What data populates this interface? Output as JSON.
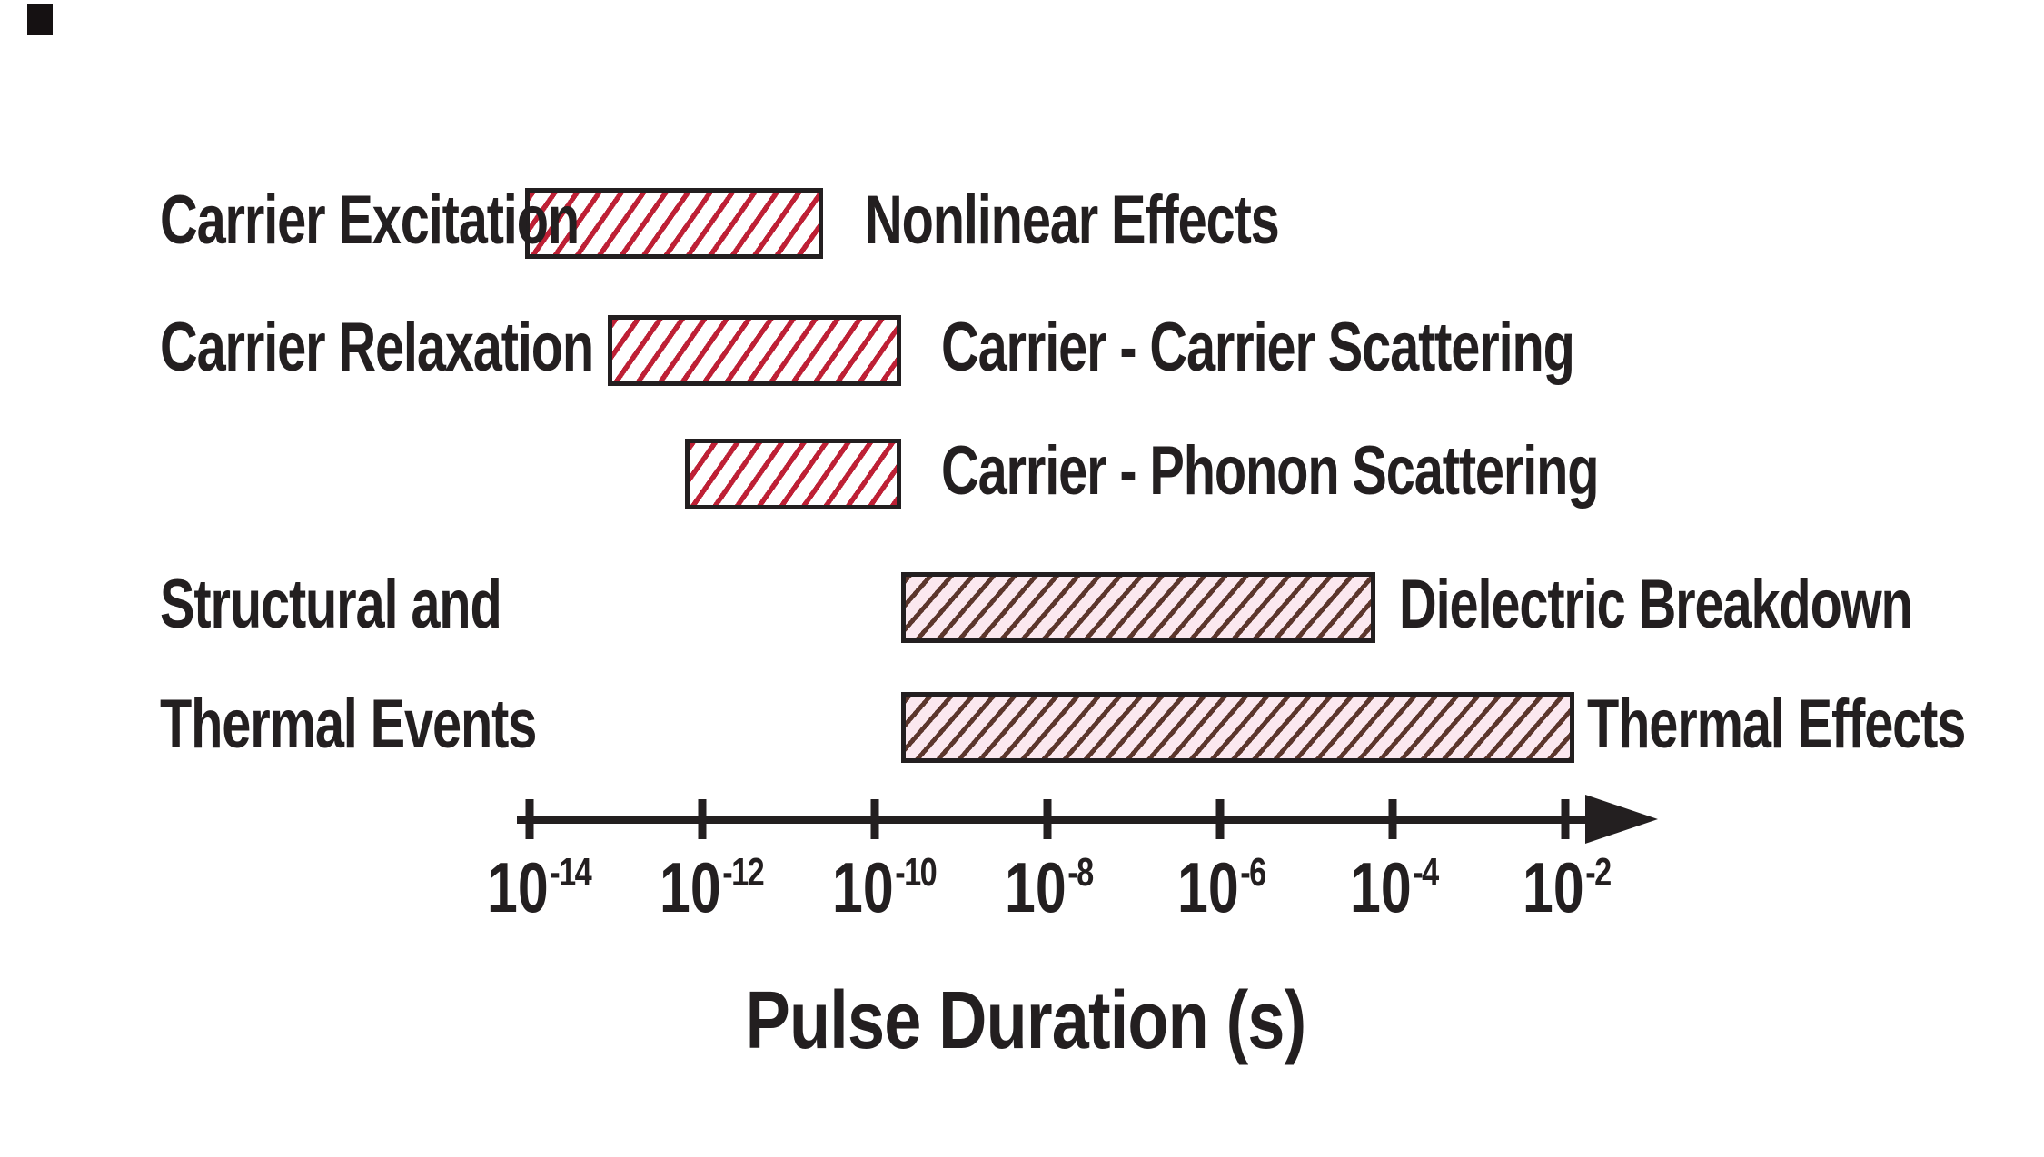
{
  "colors": {
    "hatch_red": "#be2035",
    "hatch_dark": "#5c362c",
    "pink_fill": "#fbe8ef",
    "ink": "#231f20"
  },
  "chart_data": {
    "type": "bar",
    "orientation": "horizontal-span-timeline",
    "xlabel": "Pulse Duration (s)",
    "x_axis": {
      "scale": "log10",
      "unit": "s",
      "tick_base": "10",
      "tick_exponents": [
        -14,
        -12,
        -10,
        -8,
        -6,
        -4,
        -2
      ],
      "range_exponents": [
        -14.2,
        -1.0
      ],
      "arrow": "right"
    },
    "rows": [
      {
        "left_label": "Carrier Excitation",
        "right_label": "Nonlinear Effects",
        "start_exp": -14.05,
        "end_exp": -10.6,
        "pattern": "red"
      },
      {
        "left_label": "Carrier Relaxation",
        "right_label": "Carrier - Carrier Scattering",
        "start_exp": -13.1,
        "end_exp": -9.7,
        "pattern": "red"
      },
      {
        "left_label": "",
        "right_label": "Carrier - Phonon Scattering",
        "start_exp": -12.2,
        "end_exp": -9.7,
        "pattern": "red"
      },
      {
        "left_label": "Structural and",
        "right_label": "Dielectric Breakdown",
        "start_exp": -9.7,
        "end_exp": -4.2,
        "pattern": "dark"
      },
      {
        "left_label": "Thermal Events",
        "right_label": "Thermal Effects",
        "start_exp": -9.7,
        "end_exp": -1.9,
        "pattern": "dark"
      }
    ]
  }
}
